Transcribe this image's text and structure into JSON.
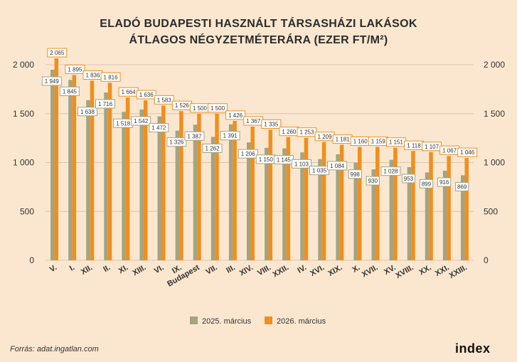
{
  "title_line1": "ELADÓ BUDAPESTI HASZNÁLT TÁRSASHÁZI LAKÁSOK",
  "title_line2": "ÁTLAGOS NÉGYZETMÉTERÁRA (EZER FT/M²)",
  "source": "Forrás: adat.ingatlan.com",
  "logo": "index",
  "colors": {
    "series_2025": "#a3a482",
    "series_2026": "#f28e1c",
    "background": "#fbe7cf"
  },
  "chart_data": {
    "type": "bar",
    "categories": [
      "V.",
      "I.",
      "XII.",
      "II.",
      "XI.",
      "XIII.",
      "VI.",
      "IX.",
      "Budapest",
      "VII.",
      "III.",
      "XIV.",
      "VIII.",
      "XXII.",
      "IV.",
      "XVI.",
      "XIX.",
      "X.",
      "XVII.",
      "XV.",
      "XVIII.",
      "XX.",
      "XXI.",
      "XXIII."
    ],
    "series": [
      {
        "name": "2025. március",
        "values": [
          1949,
          1845,
          1638,
          1716,
          1518,
          1542,
          1472,
          1326,
          1387,
          1262,
          1391,
          1206,
          1150,
          1145,
          1103,
          1035,
          1084,
          998,
          930,
          1028,
          953,
          899,
          916,
          869
        ],
        "labels": [
          "1 949",
          "1 845",
          "1 638",
          "1 716",
          "1 518",
          "1 542",
          "1 472",
          "1 326",
          "1 387",
          "1 262",
          "1 391",
          "1 206",
          "1 150",
          "1 145",
          "1 103",
          "1 035",
          "1 084",
          "998",
          "930",
          "1 028",
          "953",
          "899",
          "916",
          "869"
        ]
      },
      {
        "name": "2026. március",
        "values": [
          2065,
          1895,
          1836,
          1816,
          1664,
          1636,
          1583,
          1526,
          1500,
          1500,
          1426,
          1367,
          1335,
          1260,
          1253,
          1209,
          1181,
          1160,
          1159,
          1151,
          1118,
          1107,
          1067,
          1046
        ],
        "labels": [
          "2 065",
          "1 895",
          "1 836",
          "1 816",
          "1 664",
          "1 636",
          "1 583",
          "1 526",
          "1 500",
          "1 500",
          "1 426",
          "1 367",
          "1 335",
          "1 260",
          "1 253",
          "1 209",
          "1 181",
          "1 160",
          "1 159",
          "1 151",
          "1 118",
          "1 107",
          "1 067",
          "1 046"
        ]
      }
    ],
    "ylim": [
      0,
      2000
    ],
    "yticks": [
      0,
      500,
      1000,
      1500,
      2000
    ],
    "ytick_labels": [
      "0",
      "500",
      "1 000",
      "1 500",
      "2 000"
    ],
    "legend_position": "bottom"
  }
}
